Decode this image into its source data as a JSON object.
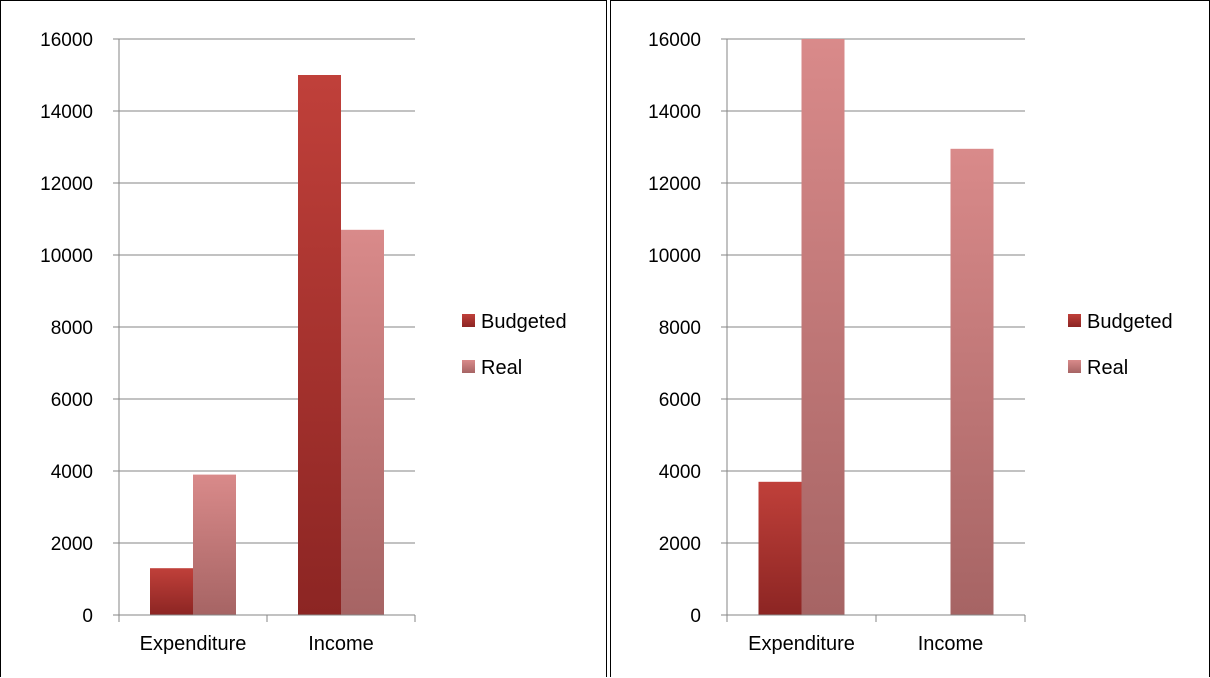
{
  "chart_data": [
    {
      "type": "bar",
      "categories": [
        "Expenditure",
        "Income"
      ],
      "series": [
        {
          "name": "Budgeted",
          "values": [
            1300,
            15000
          ]
        },
        {
          "name": "Real",
          "values": [
            3900,
            10700
          ]
        }
      ],
      "ylim": [
        0,
        16000
      ],
      "yticks": [
        "0",
        "2000",
        "4000",
        "6000",
        "8000",
        "10000",
        "12000",
        "14000",
        "16000"
      ],
      "grid": true,
      "legend": "right"
    },
    {
      "type": "bar",
      "categories": [
        "Expenditure",
        "Income"
      ],
      "series": [
        {
          "name": "Budgeted",
          "values": [
            3700,
            0
          ]
        },
        {
          "name": "Real",
          "values": [
            16000,
            12950
          ]
        }
      ],
      "ylim": [
        0,
        16000
      ],
      "yticks": [
        "0",
        "2000",
        "4000",
        "6000",
        "8000",
        "10000",
        "12000",
        "14000",
        "16000"
      ],
      "grid": true,
      "legend": "right"
    }
  ],
  "colors": {
    "budgeted_top": "#c0403a",
    "budgeted_bottom": "#8c2523",
    "real_top": "#d98a8a",
    "real_bottom": "#a66464",
    "grid": "#868686"
  }
}
